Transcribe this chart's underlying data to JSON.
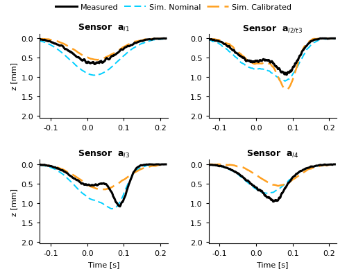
{
  "title_l1": "Sensor  $\\mathbf{a}_{l1}$",
  "title_l2t3": "Sensor  $\\mathbf{a}_{l2/t3}$",
  "title_l3": "Sensor  $\\mathbf{a}_{l3}$",
  "title_l4": "Sensor  $\\mathbf{a}_{l4}$",
  "xlabel": "Time [s]",
  "ylabel": "z [mm]",
  "xlim": [
    -0.13,
    0.22
  ],
  "ylim": [
    2.05,
    -0.12
  ],
  "xticks": [
    -0.1,
    0.0,
    0.1,
    0.2
  ],
  "yticks": [
    0,
    0.5,
    1,
    1.5,
    2
  ],
  "color_measured": "#000000",
  "color_nominal": "#00CFFF",
  "color_calibrated": "#FFA020",
  "lw_measured": 2.2,
  "lw_nominal": 1.4,
  "lw_calibrated": 1.8,
  "legend_labels": [
    "Measured",
    "Sim. Nominal",
    "Sim. Calibrated"
  ],
  "figsize": [
    5.0,
    4.02
  ],
  "dpi": 100
}
